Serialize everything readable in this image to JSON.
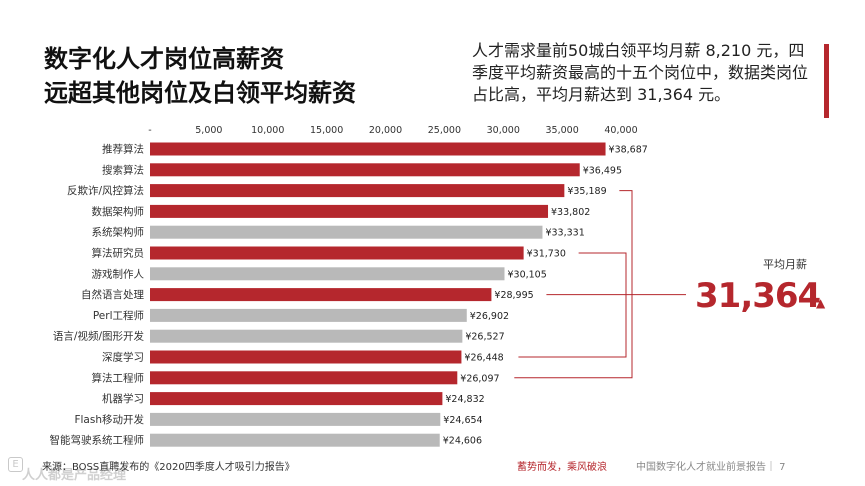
{
  "header": {
    "title_line1": "数字化人才岗位高薪资",
    "title_line2": "远超其他岗位及白领平均薪资",
    "intro": "人才需求量前50城白领平均月薪 8,210 元，四季度平均薪资最高的十五个岗位中，数据类岗位占比高，平均月薪达到 31,364 元。"
  },
  "colors": {
    "highlight": "#b5272d",
    "other": "#b9b9b9"
  },
  "chart_data": {
    "type": "bar",
    "orientation": "horizontal",
    "title": "",
    "xlabel": "",
    "ylabel": "",
    "xlim": [
      0,
      40000
    ],
    "x_ticks": [
      "-",
      "5,000",
      "10,000",
      "15,000",
      "20,000",
      "25,000",
      "30,000",
      "35,000",
      "40,000"
    ],
    "value_prefix": "¥",
    "categories": [
      "推荐算法",
      "搜索算法",
      "反欺诈/风控算法",
      "数据架构师",
      "系统架构师",
      "算法研究员",
      "游戏制作人",
      "自然语言处理",
      "Perl工程师",
      "语言/视频/图形开发",
      "深度学习",
      "算法工程师",
      "机器学习",
      "Flash移动开发",
      "智能驾驶系统工程师"
    ],
    "values": [
      38687,
      36495,
      35189,
      33802,
      33331,
      31730,
      30105,
      28995,
      26902,
      26527,
      26448,
      26097,
      24832,
      24654,
      24606
    ],
    "value_labels": [
      "¥38,687",
      "¥36,495",
      "¥35,189",
      "¥33,802",
      "¥33,331",
      "¥31,730",
      "¥30,105",
      "¥28,995",
      "¥26,902",
      "¥26,527",
      "¥26,448",
      "¥26,097",
      "¥24,832",
      "¥24,654",
      "¥24,606"
    ],
    "highlighted": [
      true,
      true,
      true,
      true,
      false,
      true,
      false,
      true,
      false,
      false,
      true,
      true,
      true,
      false,
      false
    ],
    "average": {
      "label": "平均月薪",
      "value": 31364,
      "display": "31,364",
      "arrow": "▲"
    }
  },
  "footer": {
    "source": "来源：BOSS直聘发布的《2020四季度人才吸引力报告》",
    "slogan": "蓄势而发，乘风破浪",
    "report": "中国数字化人才就业前景报告｜ 7",
    "watermark": "人人都是产品经理"
  }
}
